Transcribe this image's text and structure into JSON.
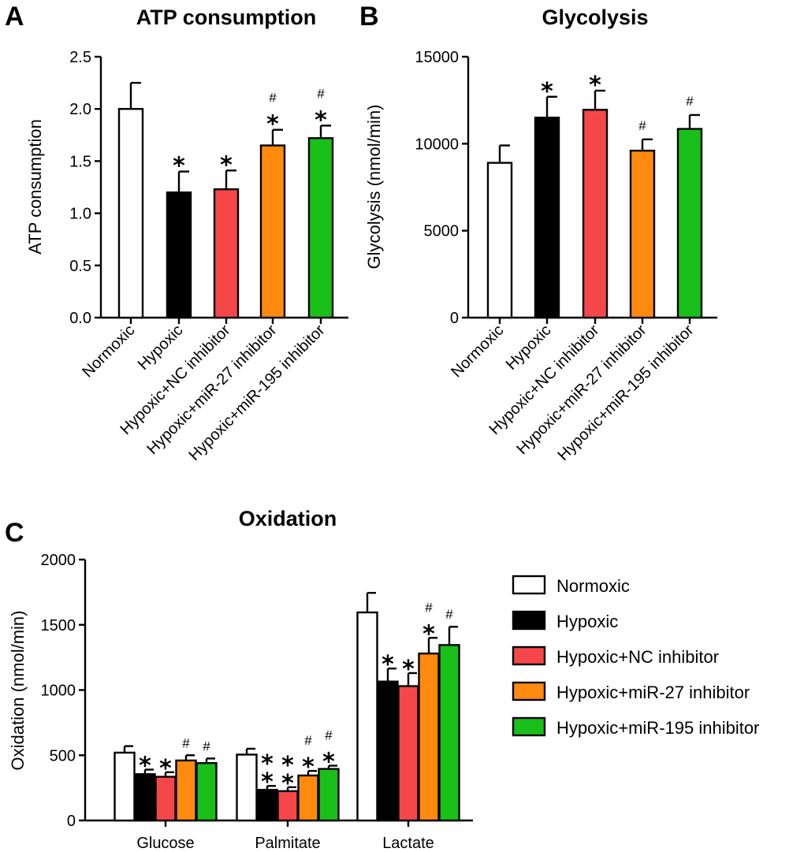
{
  "panel_letters": [
    "A",
    "B",
    "C"
  ],
  "groups": [
    "Normoxic",
    "Hypoxic",
    "Hypoxic+NC inhibitor",
    "Hypoxic+miR-27 inhibitor",
    "Hypoxic+miR-195 inhibitor"
  ],
  "colors": [
    "#ffffff",
    "#000000",
    "#f5474a",
    "#ff8a0d",
    "#19c019"
  ],
  "significance_symbols": {
    "vs_normoxic": "*",
    "vs_nc_inhibitor": "#"
  },
  "chart_data": [
    {
      "type": "bar",
      "panel": "A",
      "title": "ATP consumption",
      "xlabel": "",
      "ylabel": "ATP consumption",
      "ylim": [
        0,
        2.5
      ],
      "yticks": [
        0.0,
        0.5,
        1.0,
        1.5,
        2.0,
        2.5
      ],
      "ytick_labels": [
        "0.0",
        "0.5",
        "1.0",
        "1.5",
        "2.0",
        "2.5"
      ],
      "categories": [
        "Normoxic",
        "Hypoxic",
        "Hypoxic+NC inhibitor",
        "Hypoxic+miR-27 inhibitor",
        "Hypoxic+miR-195 inhibitor"
      ],
      "values": [
        2.0,
        1.2,
        1.23,
        1.65,
        1.72
      ],
      "errors": [
        0.25,
        0.2,
        0.18,
        0.15,
        0.12
      ],
      "marks": [
        [],
        [
          "*"
        ],
        [
          "*"
        ],
        [
          "*",
          "#"
        ],
        [
          "*",
          "#"
        ]
      ]
    },
    {
      "type": "bar",
      "panel": "B",
      "title": "Glycolysis",
      "xlabel": "",
      "ylabel": "Glycolysis (nmol/min)",
      "ylim": [
        0,
        15000
      ],
      "yticks": [
        0,
        5000,
        10000,
        15000
      ],
      "ytick_labels": [
        "0",
        "5000",
        "10000",
        "15000"
      ],
      "categories": [
        "Normoxic",
        "Hypoxic",
        "Hypoxic+NC inhibitor",
        "Hypoxic+miR-27 inhibitor",
        "Hypoxic+miR-195 inhibitor"
      ],
      "values": [
        8900,
        11500,
        11950,
        9600,
        10850
      ],
      "errors": [
        1000,
        1200,
        1100,
        650,
        800
      ],
      "marks": [
        [],
        [
          "*"
        ],
        [
          "*"
        ],
        [
          "#"
        ],
        [
          "#"
        ]
      ]
    },
    {
      "type": "bar",
      "panel": "C",
      "title": "Oxidation",
      "xlabel": "",
      "ylabel": "Oxidation (nmol/min)",
      "ylim": [
        0,
        2000
      ],
      "yticks": [
        0,
        500,
        1000,
        1500,
        2000
      ],
      "ytick_labels": [
        "0",
        "500",
        "1000",
        "1500",
        "2000"
      ],
      "categories": [
        "Glucose",
        "Palmitate",
        "Lactate"
      ],
      "legend": [
        "Normoxic",
        "Hypoxic",
        "Hypoxic+NC inhibitor",
        "Hypoxic+miR-27 inhibitor",
        "Hypoxic+miR-195 inhibitor"
      ],
      "legend_position": "right",
      "series": [
        {
          "name": "Normoxic",
          "values": [
            520,
            505,
            1595
          ],
          "errors": [
            50,
            45,
            150
          ],
          "marks": [
            [],
            [],
            []
          ]
        },
        {
          "name": "Hypoxic",
          "values": [
            355,
            235,
            1065
          ],
          "errors": [
            35,
            30,
            100
          ],
          "marks": [
            [
              "*"
            ],
            [
              "*",
              "*"
            ],
            [
              "*"
            ]
          ]
        },
        {
          "name": "Hypoxic+NC inhibitor",
          "values": [
            335,
            225,
            1030
          ],
          "errors": [
            35,
            30,
            100
          ],
          "marks": [
            [
              "*"
            ],
            [
              "*",
              "*"
            ],
            [
              "*"
            ]
          ]
        },
        {
          "name": "Hypoxic+miR-27 inhibitor",
          "values": [
            460,
            345,
            1280
          ],
          "errors": [
            40,
            35,
            120
          ],
          "marks": [
            [
              "#"
            ],
            [
              "*",
              "#"
            ],
            [
              "*",
              "#"
            ]
          ]
        },
        {
          "name": "Hypoxic+miR-195 inhibitor",
          "values": [
            440,
            395,
            1345
          ],
          "errors": [
            35,
            25,
            140
          ],
          "marks": [
            [
              "#"
            ],
            [
              "*",
              "#"
            ],
            [
              "#"
            ]
          ]
        }
      ]
    }
  ]
}
